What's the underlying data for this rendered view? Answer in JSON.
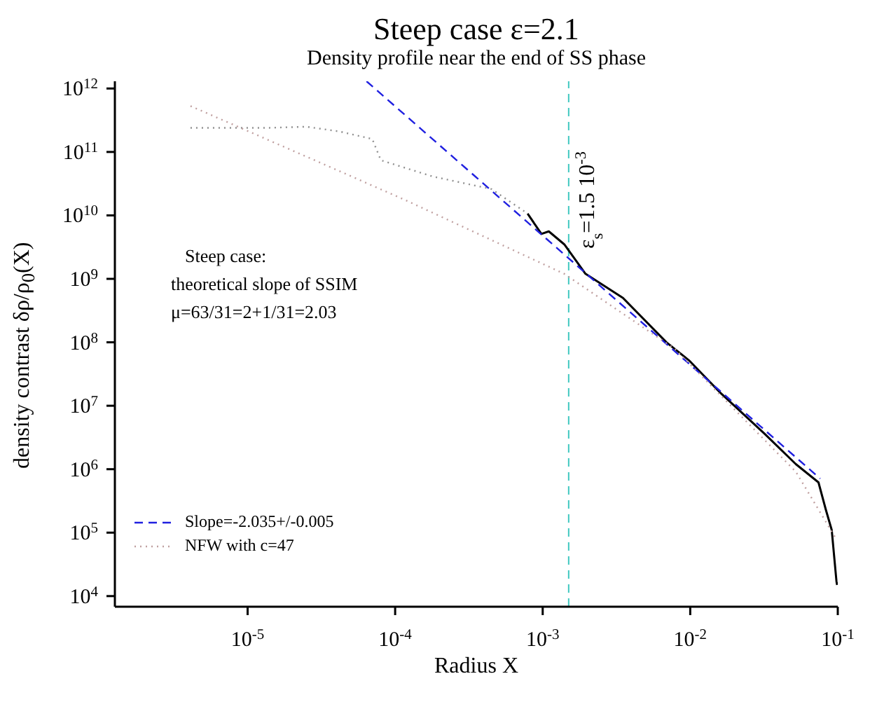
{
  "chart_data": {
    "type": "line",
    "title": "Steep case ε=2.1",
    "subtitle": "Density profile near the end of SS phase",
    "xlabel": "Radius X",
    "ylabel": "density contrast δρ/ρ$_{0}$(X)",
    "annotations": [
      "Steep case:",
      "theoretical slope of SSIM",
      "μ=63/31=2+1/31=2.03"
    ],
    "log": "xy",
    "legend": "bottom left",
    "marker": "none",
    "xlim": [
      1.26e-06,
      0.1
    ],
    "ylim": [
      6800,
      1300000000000.0
    ],
    "xticks": [
      {
        "value": 1e-05,
        "label": "10$^{-5}$"
      },
      {
        "value": 0.0001,
        "label": "10$^{-4}$"
      },
      {
        "value": 0.001,
        "label": "10$^{-3}$"
      },
      {
        "value": 0.01,
        "label": "10$^{-2}$"
      },
      {
        "value": 0.1,
        "label": "10$^{-1}$"
      }
    ],
    "yticks": [
      {
        "value": 10000.0,
        "label": "10$^{4}$"
      },
      {
        "value": 100000.0,
        "label": "10$^{5}$"
      },
      {
        "value": 1000000.0,
        "label": "10$^{6}$"
      },
      {
        "value": 10000000.0,
        "label": "10$^{7}$"
      },
      {
        "value": 100000000.0,
        "label": "10$^{8}$"
      },
      {
        "value": 1000000000.0,
        "label": "10$^{9}$"
      },
      {
        "value": 10000000000.0,
        "label": "10$^{10}$"
      },
      {
        "value": 100000000000.0,
        "label": "10$^{11}$"
      },
      {
        "value": 1000000000000.0,
        "label": "10$^{12}$"
      }
    ],
    "ref_lines": [
      {
        "axis": "x",
        "value": 0.0015,
        "label": "ε$_{s}$=1.5 10$^{-3}$",
        "color": "#40c8c0",
        "line_style": "dashed"
      }
    ],
    "series": [
      {
        "color": "#909090",
        "line_style": "dotted",
        "x": [
          4.1e-06,
          1.4e-05,
          2.5e-05,
          4.2e-05,
          7e-05,
          8e-05,
          0.00018,
          0.00045,
          0.00079
        ],
        "values": [
          240000000000.0,
          240000000000.0,
          250000000000.0,
          210000000000.0,
          160000000000.0,
          74000000000.0,
          41000000000.0,
          26000000000.0,
          10700000000.0
        ]
      },
      {
        "color": "#000000",
        "line_style": "solid",
        "x": [
          0.00079,
          0.00098,
          0.0011,
          0.0014,
          0.00195,
          0.0035,
          0.0069,
          0.0098,
          0.016,
          0.032,
          0.052,
          0.074,
          0.083,
          0.091,
          0.098,
          0.099
        ],
        "values": [
          10700000000.0,
          5100000000.0,
          5600000000.0,
          3500000000.0,
          1200000000.0,
          500000000.0,
          100000000.0,
          52000000.0,
          16000000.0,
          3600000.0,
          1200000.0,
          620000.0,
          230000.0,
          110000.0,
          17000.0,
          15000.0
        ]
      },
      {
        "name": "Slope=-2.035+/-0.005",
        "color": "#2020e0",
        "line_style": "dashed",
        "x": [
          6.4e-05,
          0.076
        ],
        "values": [
          1300000000000.0,
          710000.0
        ]
      },
      {
        "name": "NFW with c=47",
        "color": "#c0a0a0",
        "line_style": "dotted",
        "x": [
          4.1e-06,
          3.5e-05,
          0.00012,
          0.0014,
          0.0079,
          0.052,
          0.098
        ],
        "values": [
          530000000000.0,
          60000000000.0,
          17000000000.0,
          1200000000.0,
          78000000.0,
          910000.0,
          78000.0
        ]
      }
    ]
  }
}
